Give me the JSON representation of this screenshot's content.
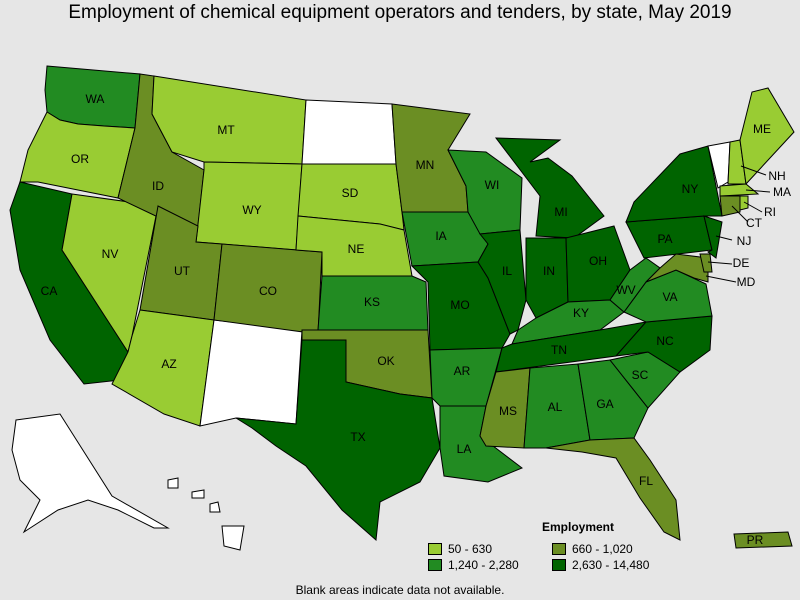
{
  "title": "Employment of chemical equipment operators and tenders, by state, May 2019",
  "legend": {
    "title": "Employment",
    "items": [
      {
        "label": "50 - 630",
        "color": "#99cc33"
      },
      {
        "label": "660 - 1,020",
        "color": "#6b8e23"
      },
      {
        "label": "1,240 - 2,280",
        "color": "#228b22"
      },
      {
        "label": "2,630 - 14,480",
        "color": "#006400"
      }
    ]
  },
  "note": "Blank areas indicate data not available.",
  "colors": {
    "blank": "#ffffff",
    "c1": "#99cc33",
    "c2": "#6b8e23",
    "c3": "#228b22",
    "c4": "#006400"
  },
  "states": {
    "WA": "WA",
    "OR": "OR",
    "CA": "CA",
    "NV": "NV",
    "ID": "ID",
    "MT": "MT",
    "WY": "WY",
    "UT": "UT",
    "AZ": "AZ",
    "CO": "CO",
    "SD": "SD",
    "NE": "NE",
    "KS": "KS",
    "OK": "OK",
    "TX": "TX",
    "MN": "MN",
    "IA": "IA",
    "MO": "MO",
    "AR": "AR",
    "LA": "LA",
    "WI": "WI",
    "IL": "IL",
    "MS": "MS",
    "MI": "MI",
    "IN": "IN",
    "KY": "KY",
    "TN": "TN",
    "AL": "AL",
    "OH": "OH",
    "WV": "WV",
    "GA": "GA",
    "FL": "FL",
    "SC": "SC",
    "NC": "NC",
    "VA": "VA",
    "PA": "PA",
    "NY": "NY",
    "ME": "ME",
    "NH": "NH",
    "MA": "MA",
    "RI": "RI",
    "CT": "CT",
    "NJ": "NJ",
    "DE": "DE",
    "MD": "MD",
    "PR": "PR"
  }
}
